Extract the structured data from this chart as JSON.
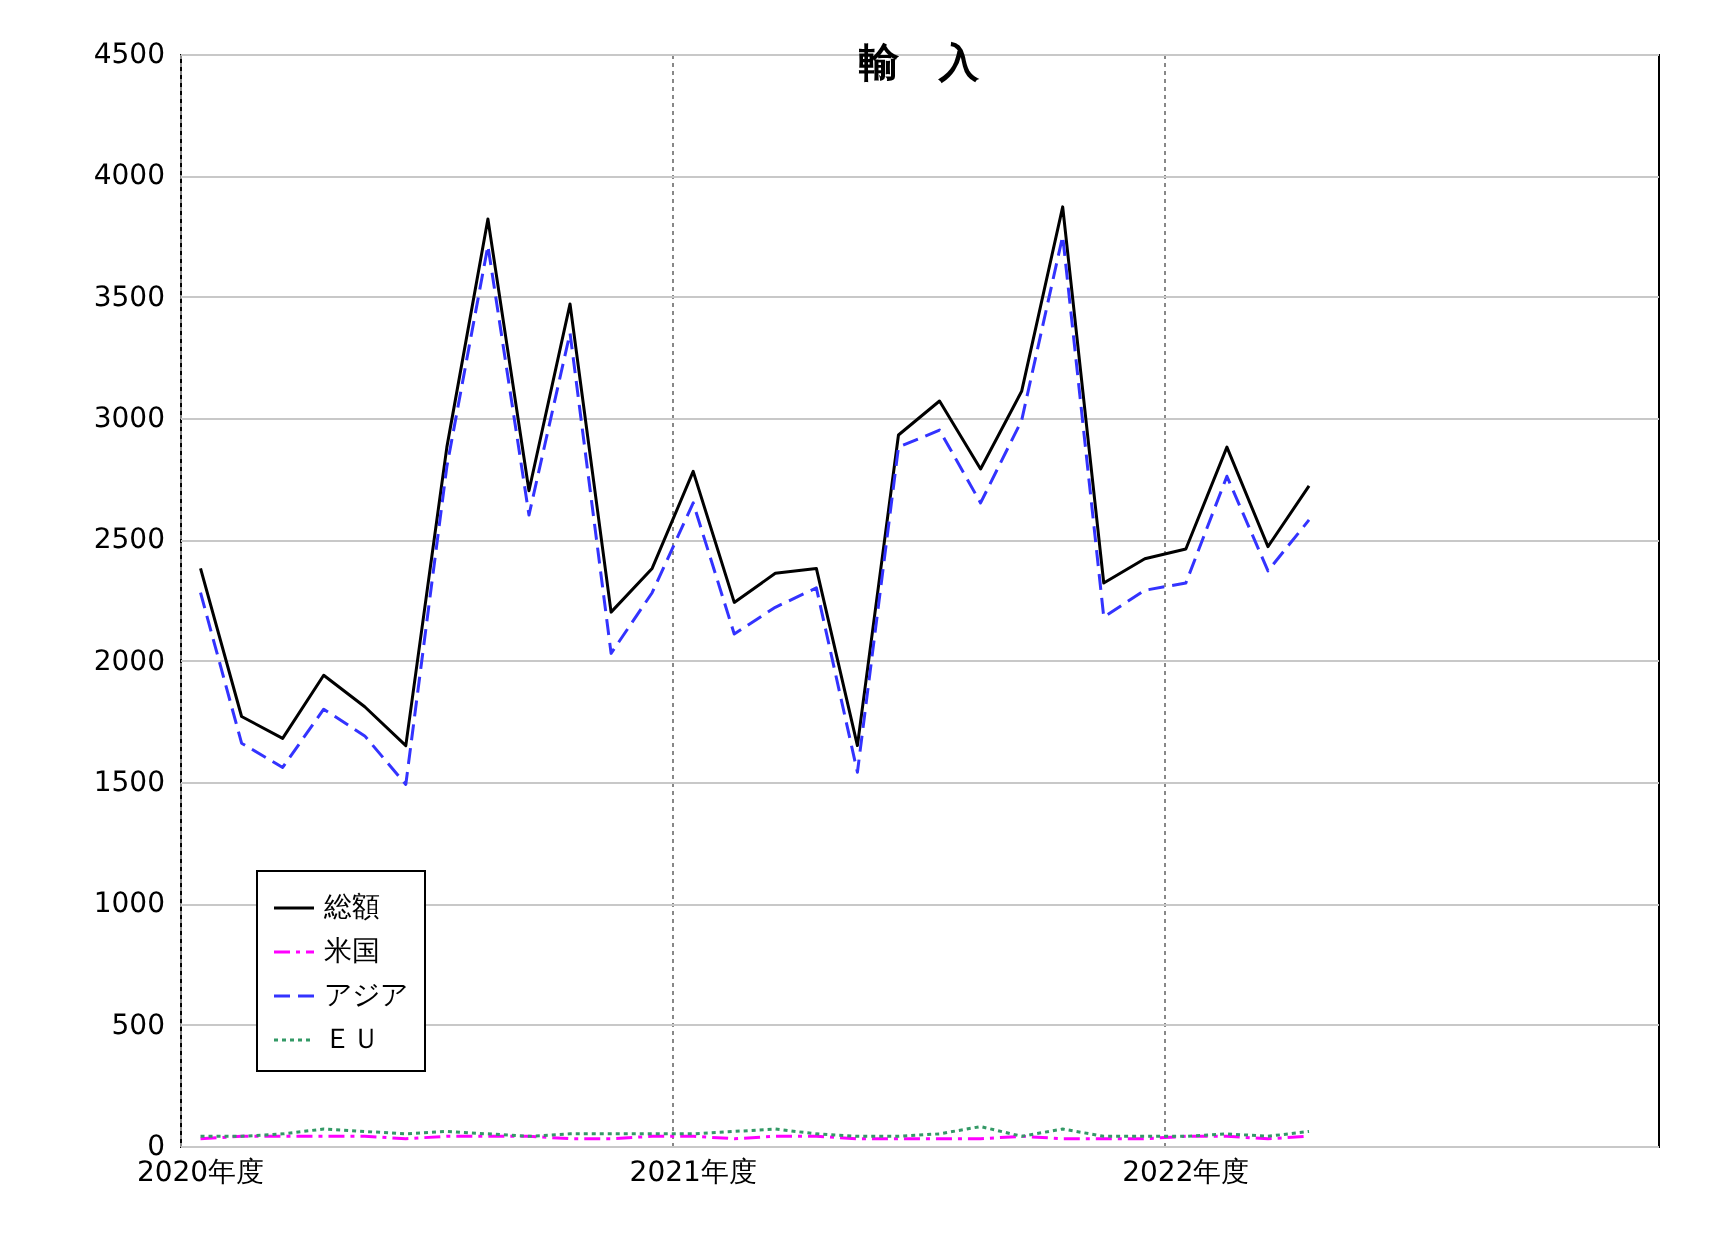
{
  "chart_data": {
    "type": "line",
    "title": "輸　入",
    "categories": [
      "2020年度",
      null,
      null,
      null,
      null,
      null,
      null,
      null,
      null,
      null,
      null,
      null,
      "2021年度",
      null,
      null,
      null,
      null,
      null,
      null,
      null,
      null,
      null,
      null,
      null,
      "2022年度",
      null,
      null,
      null,
      null,
      null,
      null,
      null,
      null,
      null,
      null,
      null
    ],
    "ylim": [
      0,
      4500
    ],
    "yticks": [
      0,
      500,
      1000,
      1500,
      2000,
      2500,
      3000,
      3500,
      4000,
      4500
    ],
    "grid": true,
    "legend": "bottom left",
    "marker": "none",
    "series": [
      {
        "name": "総額",
        "color": "#000000",
        "line_style": "solid",
        "values": [
          2380,
          1770,
          1680,
          1940,
          1810,
          1650,
          2880,
          3820,
          2700,
          3470,
          2200,
          2380,
          2780,
          2240,
          2360,
          2380,
          1650,
          2930,
          3070,
          2790,
          3110,
          3870,
          2320,
          2420,
          2460,
          2880,
          2470,
          2720,
          null,
          null,
          null,
          null,
          null,
          null,
          null,
          null
        ]
      },
      {
        "name": "米国",
        "color": "#ff00ff",
        "line_style": "dashdot",
        "values": [
          30,
          40,
          40,
          40,
          40,
          30,
          40,
          40,
          40,
          30,
          30,
          40,
          40,
          30,
          40,
          40,
          30,
          30,
          30,
          30,
          40,
          30,
          30,
          30,
          40,
          40,
          30,
          40,
          null,
          null,
          null,
          null,
          null,
          null,
          null,
          null
        ]
      },
      {
        "name": "アジア",
        "color": "#3333ff",
        "line_style": "dashed",
        "values": [
          2280,
          1660,
          1560,
          1800,
          1690,
          1490,
          2800,
          3710,
          2600,
          3350,
          2030,
          2280,
          2650,
          2110,
          2220,
          2300,
          1540,
          2880,
          2950,
          2650,
          2990,
          3750,
          2180,
          2290,
          2320,
          2760,
          2370,
          2580,
          null,
          null,
          null,
          null,
          null,
          null,
          null,
          null
        ]
      },
      {
        "name": "ＥＵ",
        "color": "#339966",
        "line_style": "dotted",
        "values": [
          40,
          40,
          50,
          70,
          60,
          50,
          60,
          50,
          40,
          50,
          50,
          50,
          50,
          60,
          70,
          50,
          40,
          40,
          50,
          80,
          40,
          70,
          40,
          40,
          40,
          50,
          40,
          60,
          null,
          null,
          null,
          null,
          null,
          null,
          null,
          null
        ]
      }
    ]
  }
}
